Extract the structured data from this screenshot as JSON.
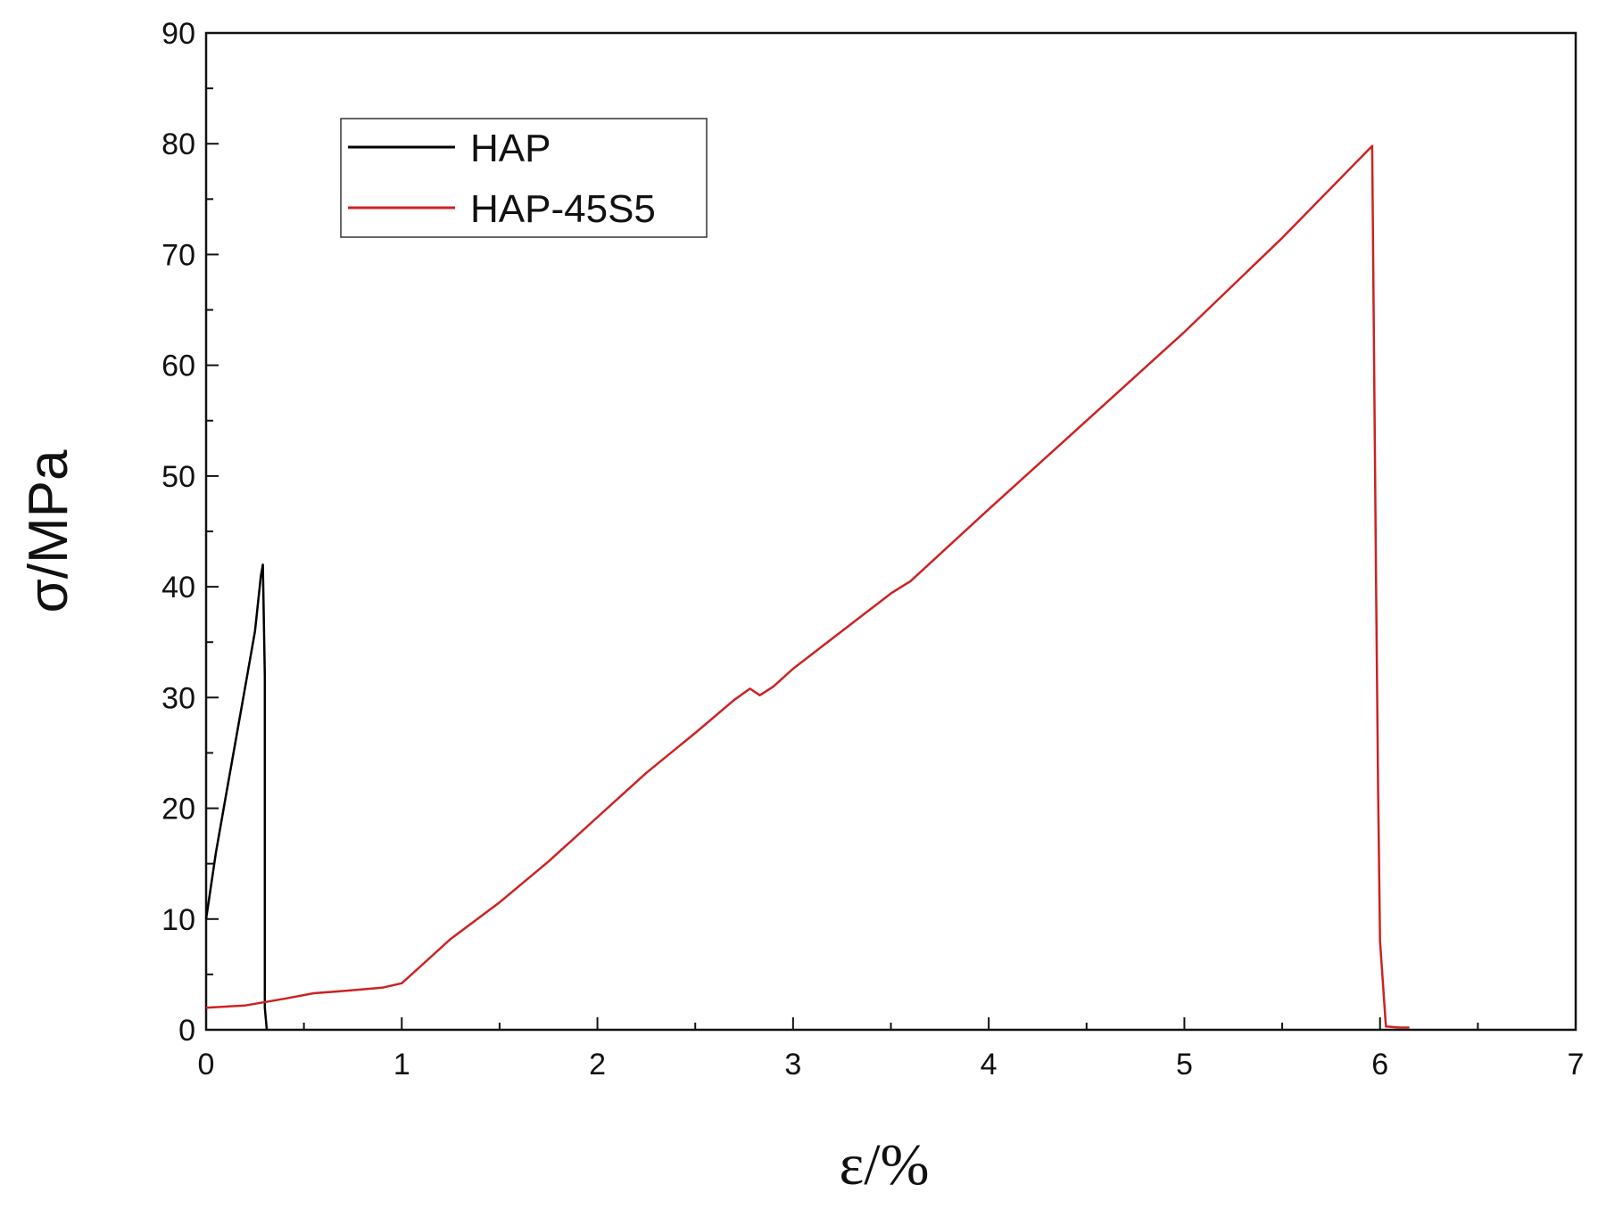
{
  "chart_data": {
    "type": "line",
    "title": "",
    "xlabel": "ε/%",
    "ylabel": "σ/MPa",
    "xlim": [
      0,
      7
    ],
    "ylim": [
      0,
      90
    ],
    "x_ticks": [
      0,
      1,
      2,
      3,
      4,
      5,
      6,
      7
    ],
    "y_ticks": [
      0,
      10,
      20,
      30,
      40,
      50,
      60,
      70,
      80,
      90
    ],
    "grid": false,
    "legend_position": "top-left",
    "series": [
      {
        "name": "HAP",
        "color": "#000000",
        "x": [
          0.0,
          0.05,
          0.1,
          0.15,
          0.2,
          0.25,
          0.28,
          0.29,
          0.3,
          0.3,
          0.3,
          0.3,
          0.31
        ],
        "y": [
          10,
          16,
          21,
          26,
          31,
          36,
          41,
          42,
          32,
          20,
          13,
          2,
          0
        ]
      },
      {
        "name": "HAP-45S5",
        "color": "#cc2222",
        "x": [
          0.0,
          0.2,
          0.4,
          0.55,
          0.7,
          0.9,
          1.0,
          1.1,
          1.25,
          1.5,
          1.75,
          2.0,
          2.25,
          2.5,
          2.7,
          2.78,
          2.83,
          2.9,
          3.0,
          3.25,
          3.5,
          3.6,
          4.0,
          4.5,
          5.0,
          5.5,
          5.96,
          5.97,
          5.98,
          5.99,
          6.0,
          6.03,
          6.1,
          6.15
        ],
        "y": [
          2,
          2.2,
          2.8,
          3.3,
          3.5,
          3.8,
          4.2,
          5.8,
          8.2,
          11.5,
          15.2,
          19.2,
          23.2,
          26.8,
          29.8,
          30.8,
          30.2,
          31.0,
          32.6,
          36.0,
          39.4,
          40.5,
          47.0,
          55.0,
          63.0,
          71.5,
          79.8,
          60,
          40,
          22,
          8,
          0.3,
          0.2,
          0.2
        ]
      }
    ]
  }
}
